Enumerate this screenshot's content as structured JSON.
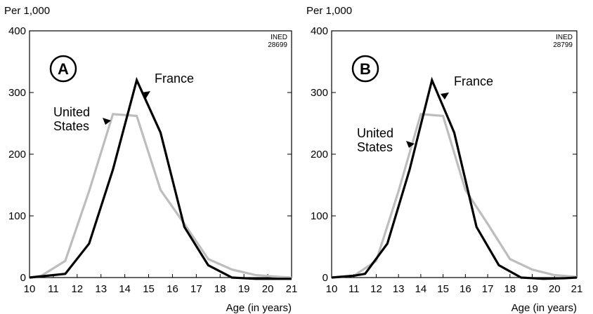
{
  "chart_data": [
    {
      "type": "line",
      "panel_label": "A",
      "ylabel": "Per 1,000",
      "xlabel": "Age (in years)",
      "stamp": [
        "INED",
        "28699"
      ],
      "xlim": [
        10,
        21
      ],
      "ylim": [
        0,
        400
      ],
      "x_ticks": [
        10,
        11,
        12,
        13,
        14,
        15,
        16,
        17,
        18,
        19,
        20,
        21
      ],
      "y_ticks": [
        0,
        100,
        200,
        300,
        400
      ],
      "grid": false,
      "series": [
        {
          "name": "France",
          "color": "#000000",
          "points": [
            [
              10,
              0
            ],
            [
              11.5,
              6
            ],
            [
              12.5,
              55
            ],
            [
              13.5,
              175
            ],
            [
              14.5,
              320
            ],
            [
              15.5,
              235
            ],
            [
              16.5,
              82
            ],
            [
              17.5,
              20
            ],
            [
              18.5,
              0
            ],
            [
              19.5,
              -2
            ],
            [
              20.5,
              -2
            ],
            [
              21,
              -2
            ]
          ]
        },
        {
          "name": "United States",
          "color": "#bdbdbd",
          "points": [
            [
              10,
              0
            ],
            [
              10.5,
              3
            ],
            [
              11.5,
              27
            ],
            [
              12.5,
              140
            ],
            [
              13.5,
              265
            ],
            [
              14.5,
              262
            ],
            [
              15.5,
              142
            ],
            [
              16.5,
              87
            ],
            [
              17.5,
              30
            ],
            [
              18.5,
              13
            ],
            [
              19.5,
              4
            ],
            [
              20.5,
              1
            ],
            [
              21,
              0
            ]
          ]
        }
      ],
      "annotations": [
        {
          "text": "France",
          "series": "France"
        },
        {
          "text": "United\nStates",
          "series": "United States"
        }
      ]
    },
    {
      "type": "line",
      "panel_label": "B",
      "ylabel": "Per 1,000",
      "xlabel": "Age (in years)",
      "stamp": [
        "INED",
        "28799"
      ],
      "xlim": [
        10,
        21
      ],
      "ylim": [
        0,
        400
      ],
      "x_ticks": [
        10,
        11,
        12,
        13,
        14,
        15,
        16,
        17,
        18,
        19,
        20,
        21
      ],
      "y_ticks": [
        0,
        100,
        200,
        300,
        400
      ],
      "grid": false,
      "series": [
        {
          "name": "France",
          "color": "#000000",
          "points": [
            [
              10,
              0
            ],
            [
              11,
              3
            ],
            [
              11.5,
              6
            ],
            [
              12.5,
              55
            ],
            [
              13.5,
              175
            ],
            [
              14.5,
              320
            ],
            [
              15.5,
              235
            ],
            [
              16.5,
              82
            ],
            [
              17.5,
              20
            ],
            [
              18.5,
              0
            ],
            [
              19.5,
              -2
            ],
            [
              20.5,
              -1
            ],
            [
              21,
              0
            ]
          ]
        },
        {
          "name": "United States",
          "color": "#bdbdbd",
          "points": [
            [
              10,
              0
            ],
            [
              11,
              3
            ],
            [
              12,
              27
            ],
            [
              13,
              140
            ],
            [
              14,
              265
            ],
            [
              15,
              262
            ],
            [
              16,
              142
            ],
            [
              17,
              87
            ],
            [
              18,
              30
            ],
            [
              19,
              13
            ],
            [
              20,
              4
            ],
            [
              21,
              1
            ]
          ]
        }
      ],
      "annotations": [
        {
          "text": "France",
          "series": "France"
        },
        {
          "text": "United\nStates",
          "series": "United States"
        }
      ]
    }
  ]
}
